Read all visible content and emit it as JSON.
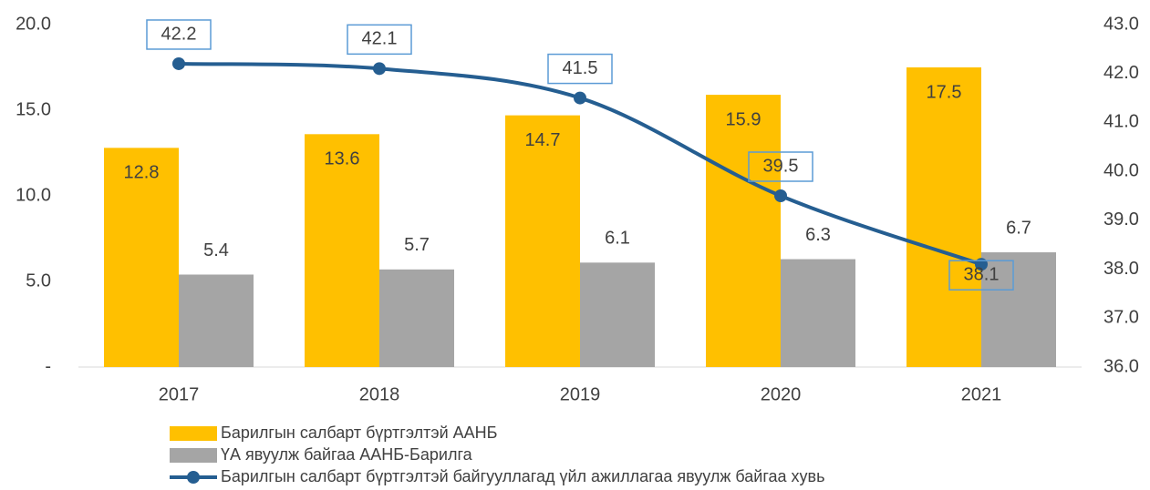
{
  "chart_data": {
    "type": "bar",
    "categories": [
      "2017",
      "2018",
      "2019",
      "2020",
      "2021"
    ],
    "series": [
      {
        "name": "Барилгын салбарт бүртгэлтэй ААНБ",
        "color": "#ffc000",
        "values": [
          12.8,
          13.6,
          14.7,
          15.9,
          17.5
        ]
      },
      {
        "name": "ҮА явуулж байгаа ААНБ-Барилга",
        "color": "#a5a5a5",
        "values": [
          5.4,
          5.7,
          6.1,
          6.3,
          6.7
        ]
      },
      {
        "name": "Барилгын салбарт бүртгэлтэй байгууллагад үйл ажиллагаа явуулж байгаа хувь",
        "color": "#255e91",
        "type": "line",
        "axis": "y2",
        "values": [
          42.2,
          42.1,
          41.5,
          39.5,
          38.1
        ]
      }
    ],
    "ylim": [
      0,
      20
    ],
    "yticks": [
      {
        "value": 0,
        "label": "-"
      },
      {
        "value": 5,
        "label": "5.0"
      },
      {
        "value": 10,
        "label": "10.0"
      },
      {
        "value": 15,
        "label": "15.0"
      },
      {
        "value": 20,
        "label": "20.0"
      }
    ],
    "y2lim": [
      36,
      43
    ],
    "y2ticks": [
      {
        "value": 36,
        "label": "36.0"
      },
      {
        "value": 37,
        "label": "37.0"
      },
      {
        "value": 38,
        "label": "38.0"
      },
      {
        "value": 39,
        "label": "39.0"
      },
      {
        "value": 40,
        "label": "40.0"
      },
      {
        "value": 41,
        "label": "41.0"
      },
      {
        "value": 42,
        "label": "42.0"
      },
      {
        "value": 43,
        "label": "43.0"
      }
    ],
    "grid": false,
    "legend": "bottom"
  }
}
